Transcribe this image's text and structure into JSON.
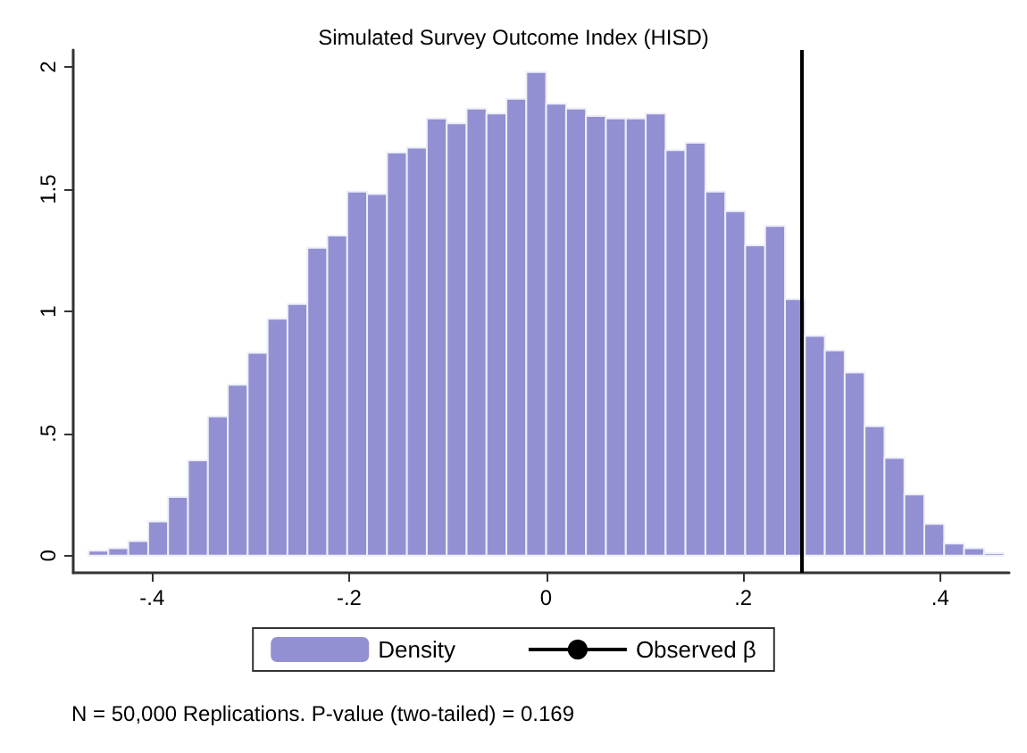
{
  "chart_data": {
    "type": "histogram",
    "title": "Simulated Survey Outcome Index (HISD)",
    "bins": [
      -0.4645,
      -0.4443,
      -0.4241,
      -0.4039,
      -0.3837,
      -0.3635,
      -0.3433,
      -0.3231,
      -0.3029,
      -0.2827,
      -0.2625,
      -0.2423,
      -0.2221,
      -0.2019,
      -0.1817,
      -0.1615,
      -0.1413,
      -0.1211,
      -0.1009,
      -0.0807,
      -0.0605,
      -0.0403,
      -0.0201,
      0.0001,
      0.0203,
      0.0405,
      0.0607,
      0.0809,
      0.1011,
      0.1213,
      0.1415,
      0.1617,
      0.1819,
      0.2021,
      0.2223,
      0.2425,
      0.2627,
      0.2829,
      0.3031,
      0.3233,
      0.3435,
      0.3637,
      0.3839,
      0.4041,
      0.4243,
      0.4445,
      0.4647
    ],
    "series": [
      {
        "name": "Density",
        "color": "#9290d2",
        "values": [
          0.02,
          0.03,
          0.06,
          0.14,
          0.24,
          0.39,
          0.57,
          0.7,
          0.83,
          0.97,
          1.03,
          1.26,
          1.31,
          1.49,
          1.48,
          1.65,
          1.67,
          1.79,
          1.77,
          1.83,
          1.81,
          1.87,
          1.98,
          1.85,
          1.83,
          1.8,
          1.79,
          1.79,
          1.81,
          1.66,
          1.69,
          1.49,
          1.41,
          1.27,
          1.35,
          1.05,
          0.9,
          0.84,
          0.75,
          0.53,
          0.4,
          0.25,
          0.13,
          0.05,
          0.03,
          0.01
        ]
      }
    ],
    "ref_lines": [
      {
        "axis": "x",
        "value": 0.256,
        "label": "Observed β",
        "color": "#000000"
      }
    ],
    "xlim": [
      -0.48,
      0.47
    ],
    "xticks": [
      {
        "value": -0.4,
        "label": "-.4"
      },
      {
        "value": -0.2,
        "label": "-.2"
      },
      0,
      {
        "value": 0.2,
        "label": ".2"
      },
      {
        "value": 0.4,
        "label": ".4"
      }
    ],
    "ylim": [
      -0.07,
      2.07
    ],
    "yticks": [
      0,
      {
        "value": 0.5,
        "label": ".5"
      },
      1,
      1.5,
      2
    ],
    "grid": false,
    "legend": "bottom",
    "annotations": [
      "N = 50,000 Replications. P-value (two-tailed) = 0.169"
    ]
  }
}
